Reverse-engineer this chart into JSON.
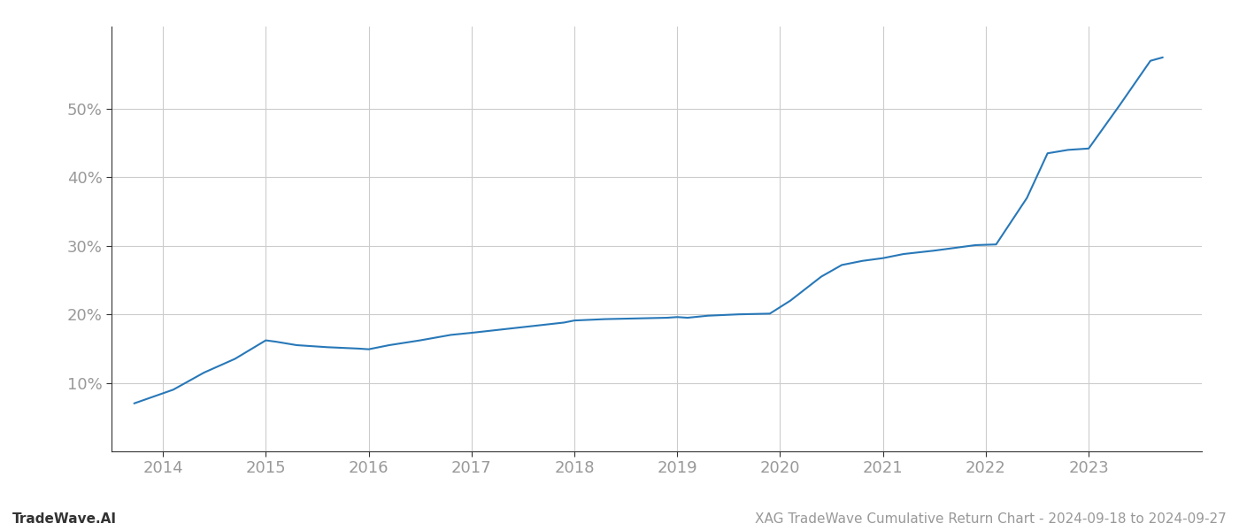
{
  "title": "XAG TradeWave Cumulative Return Chart - 2024-09-18 to 2024-09-27",
  "watermark": "TradeWave.AI",
  "line_color": "#2878b8",
  "line_width": 1.5,
  "background_color": "#ffffff",
  "grid_color": "#cccccc",
  "x_values": [
    2013.72,
    2014.1,
    2014.4,
    2014.7,
    2015.0,
    2015.1,
    2015.3,
    2015.6,
    2015.9,
    2016.0,
    2016.2,
    2016.5,
    2016.8,
    2017.0,
    2017.3,
    2017.6,
    2017.9,
    2018.0,
    2018.3,
    2018.6,
    2018.9,
    2019.0,
    2019.1,
    2019.3,
    2019.6,
    2019.9,
    2020.1,
    2020.4,
    2020.6,
    2020.8,
    2021.0,
    2021.2,
    2021.5,
    2021.7,
    2021.9,
    2022.1,
    2022.4,
    2022.6,
    2022.8,
    2023.0,
    2023.3,
    2023.6,
    2023.72
  ],
  "y_values": [
    7.0,
    9.0,
    11.5,
    13.5,
    16.2,
    16.0,
    15.5,
    15.2,
    15.0,
    14.9,
    15.5,
    16.2,
    17.0,
    17.3,
    17.8,
    18.3,
    18.8,
    19.1,
    19.3,
    19.4,
    19.5,
    19.6,
    19.5,
    19.8,
    20.0,
    20.1,
    22.0,
    25.5,
    27.2,
    27.8,
    28.2,
    28.8,
    29.3,
    29.7,
    30.1,
    30.2,
    37.0,
    43.5,
    44.0,
    44.2,
    50.5,
    57.0,
    57.5
  ],
  "xlim": [
    2013.5,
    2024.1
  ],
  "ylim": [
    0,
    62
  ],
  "yticks": [
    10,
    20,
    30,
    40,
    50
  ],
  "xticks": [
    2014,
    2015,
    2016,
    2017,
    2018,
    2019,
    2020,
    2021,
    2022,
    2023
  ],
  "tick_label_color": "#999999",
  "tick_fontsize": 13,
  "footer_fontsize": 11,
  "footer_color": "#999999",
  "spine_color": "#333333"
}
